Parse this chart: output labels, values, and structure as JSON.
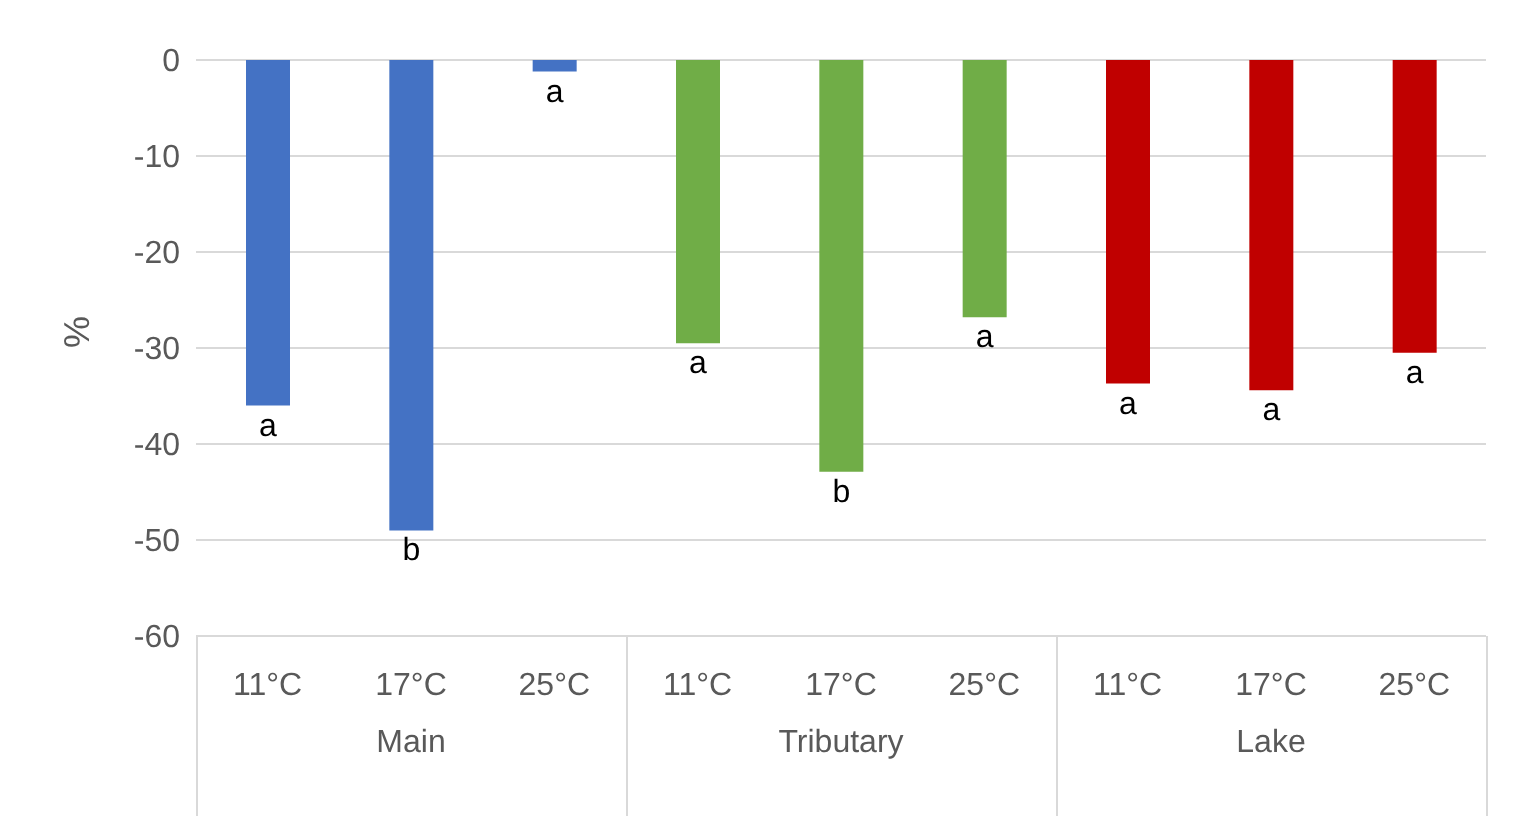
{
  "chart_data": {
    "type": "bar",
    "ylabel": "%",
    "categories": [
      "11°C",
      "17°C",
      "25°C",
      "11°C",
      "17°C",
      "25°C",
      "11°C",
      "17°C",
      "25°C"
    ],
    "values": [
      -36,
      -49,
      -1.2,
      -29.5,
      -42.9,
      -26.8,
      -33.7,
      -34.4,
      -30.5
    ],
    "colors": [
      "#4472c4",
      "#4472c4",
      "#4472c4",
      "#70ad47",
      "#70ad47",
      "#70ad47",
      "#c00000",
      "#c00000",
      "#c00000"
    ],
    "value_labels": [
      "a",
      "b",
      "a",
      "a",
      "b",
      "a",
      "a",
      "a",
      "a"
    ],
    "annotations": [
      "Main",
      "Tributary",
      "Lake"
    ],
    "ylim": [
      -60,
      0
    ],
    "yticks": [
      0,
      -10,
      -20,
      -30,
      -40,
      -50,
      -60
    ],
    "grid": "y"
  }
}
